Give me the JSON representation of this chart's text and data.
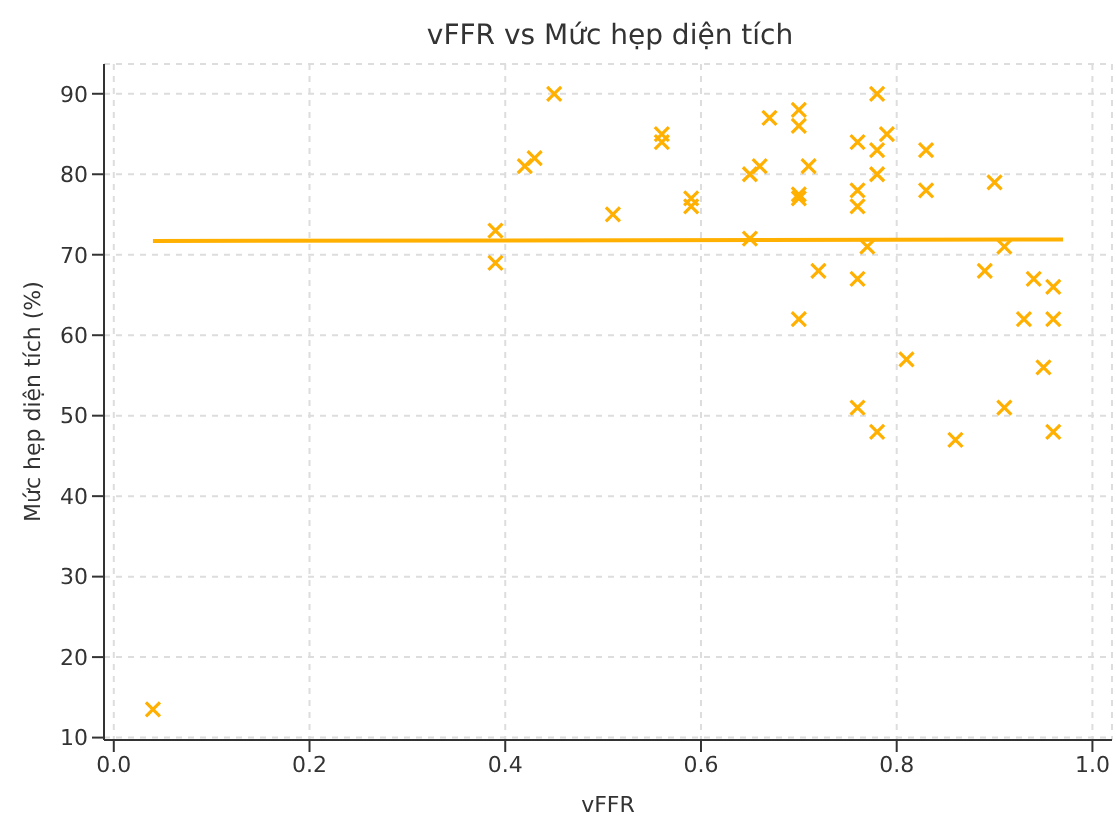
{
  "chart_data": {
    "type": "scatter",
    "title": "vFFR vs Mức hẹp diện tích",
    "xlabel": "vFFR",
    "ylabel": "Mức hẹp diện tích (%)",
    "xlim": [
      -0.01,
      1.02
    ],
    "xticks": [
      {
        "value": 0,
        "label": "0.0"
      },
      {
        "value": 0.2,
        "label": "0.2"
      },
      {
        "value": 0.4,
        "label": "0.4"
      },
      {
        "value": 0.6,
        "label": "0.6"
      },
      {
        "value": 0.8,
        "label": "0.8"
      },
      {
        "value": 1,
        "label": "1.0"
      }
    ],
    "ylim": [
      9.7,
      93.7
    ],
    "yticks": [
      10,
      20,
      30,
      40,
      50,
      60,
      70,
      80,
      90
    ],
    "grid": true,
    "marker": "cross",
    "series": [
      {
        "color": "#ffb000",
        "x": [
          0.04,
          0.39,
          0.39,
          0.42,
          0.43,
          0.45,
          0.51,
          0.56,
          0.56,
          0.59,
          0.59,
          0.65,
          0.66,
          0.65,
          0.67,
          0.7,
          0.7,
          0.7,
          0.7,
          0.7,
          0.71,
          0.72,
          0.76,
          0.76,
          0.76,
          0.76,
          0.78,
          0.78,
          0.78,
          0.77,
          0.79,
          0.76,
          0.78,
          0.81,
          0.83,
          0.83,
          0.86,
          0.9,
          0.89,
          0.91,
          0.93,
          0.94,
          0.96,
          0.96,
          0.95,
          0.91,
          0.96
        ],
        "values": [
          13.5,
          73,
          69,
          81,
          82,
          90,
          75,
          85,
          84,
          77,
          76,
          80,
          81,
          72,
          87,
          88,
          86,
          77.5,
          77,
          62,
          81,
          68,
          84,
          78,
          76,
          67,
          90,
          83,
          80,
          71,
          85,
          51,
          48,
          57,
          83,
          78,
          47,
          79,
          68,
          71,
          62,
          67,
          66,
          62,
          56,
          51,
          48
        ]
      },
      {
        "type": "line",
        "marker": "none",
        "color": "#ffb000",
        "x": [
          0.04,
          0.97
        ],
        "values": [
          71.7,
          71.9
        ]
      }
    ]
  }
}
